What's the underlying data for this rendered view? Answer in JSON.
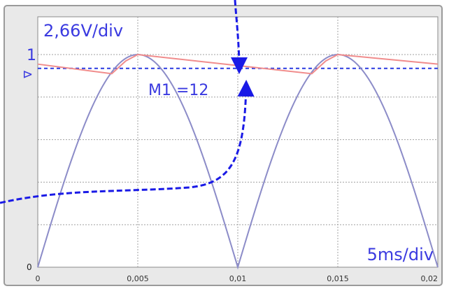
{
  "chart_data": {
    "type": "line",
    "xlim": [
      0,
      0.02
    ],
    "ylim": [
      0,
      1.1
    ],
    "grid": true,
    "x_ticks": [
      "0",
      "0,005",
      "0,01",
      "0,015",
      "0,02"
    ],
    "y_ticks": [
      {
        "label": "0",
        "value": 0
      },
      {
        "label": "1",
        "value": 1
      }
    ],
    "annotations": {
      "volt_scale": "2,66V/div",
      "time_scale": "5ms/div",
      "marker_text": "M1 =12",
      "marker_symbol": "⊳"
    },
    "marker_level": 0.935,
    "series": [
      {
        "color": "#8c8cc8",
        "x": [
          0,
          0.001,
          0.002,
          0.003,
          0.004,
          0.005,
          0.006,
          0.007,
          0.008,
          0.009,
          0.01,
          0.011,
          0.012,
          0.013,
          0.014,
          0.015,
          0.016,
          0.017,
          0.018,
          0.019,
          0.02
        ],
        "y": [
          0,
          0.31,
          0.59,
          0.81,
          0.95,
          1,
          0.95,
          0.81,
          0.59,
          0.31,
          0,
          0.31,
          0.59,
          0.81,
          0.95,
          1,
          0.95,
          0.81,
          0.59,
          0.31,
          0
        ]
      },
      {
        "color": "#f08c8c",
        "x": [
          0,
          0.0037,
          0.0044,
          0.005,
          0.0137,
          0.0144,
          0.015,
          0.02
        ],
        "y": [
          0.955,
          0.91,
          0.97,
          1,
          0.91,
          0.97,
          1,
          0.955
        ]
      }
    ],
    "arrows_color": "#1a1ae6",
    "label_color": "#3a3ae0"
  }
}
